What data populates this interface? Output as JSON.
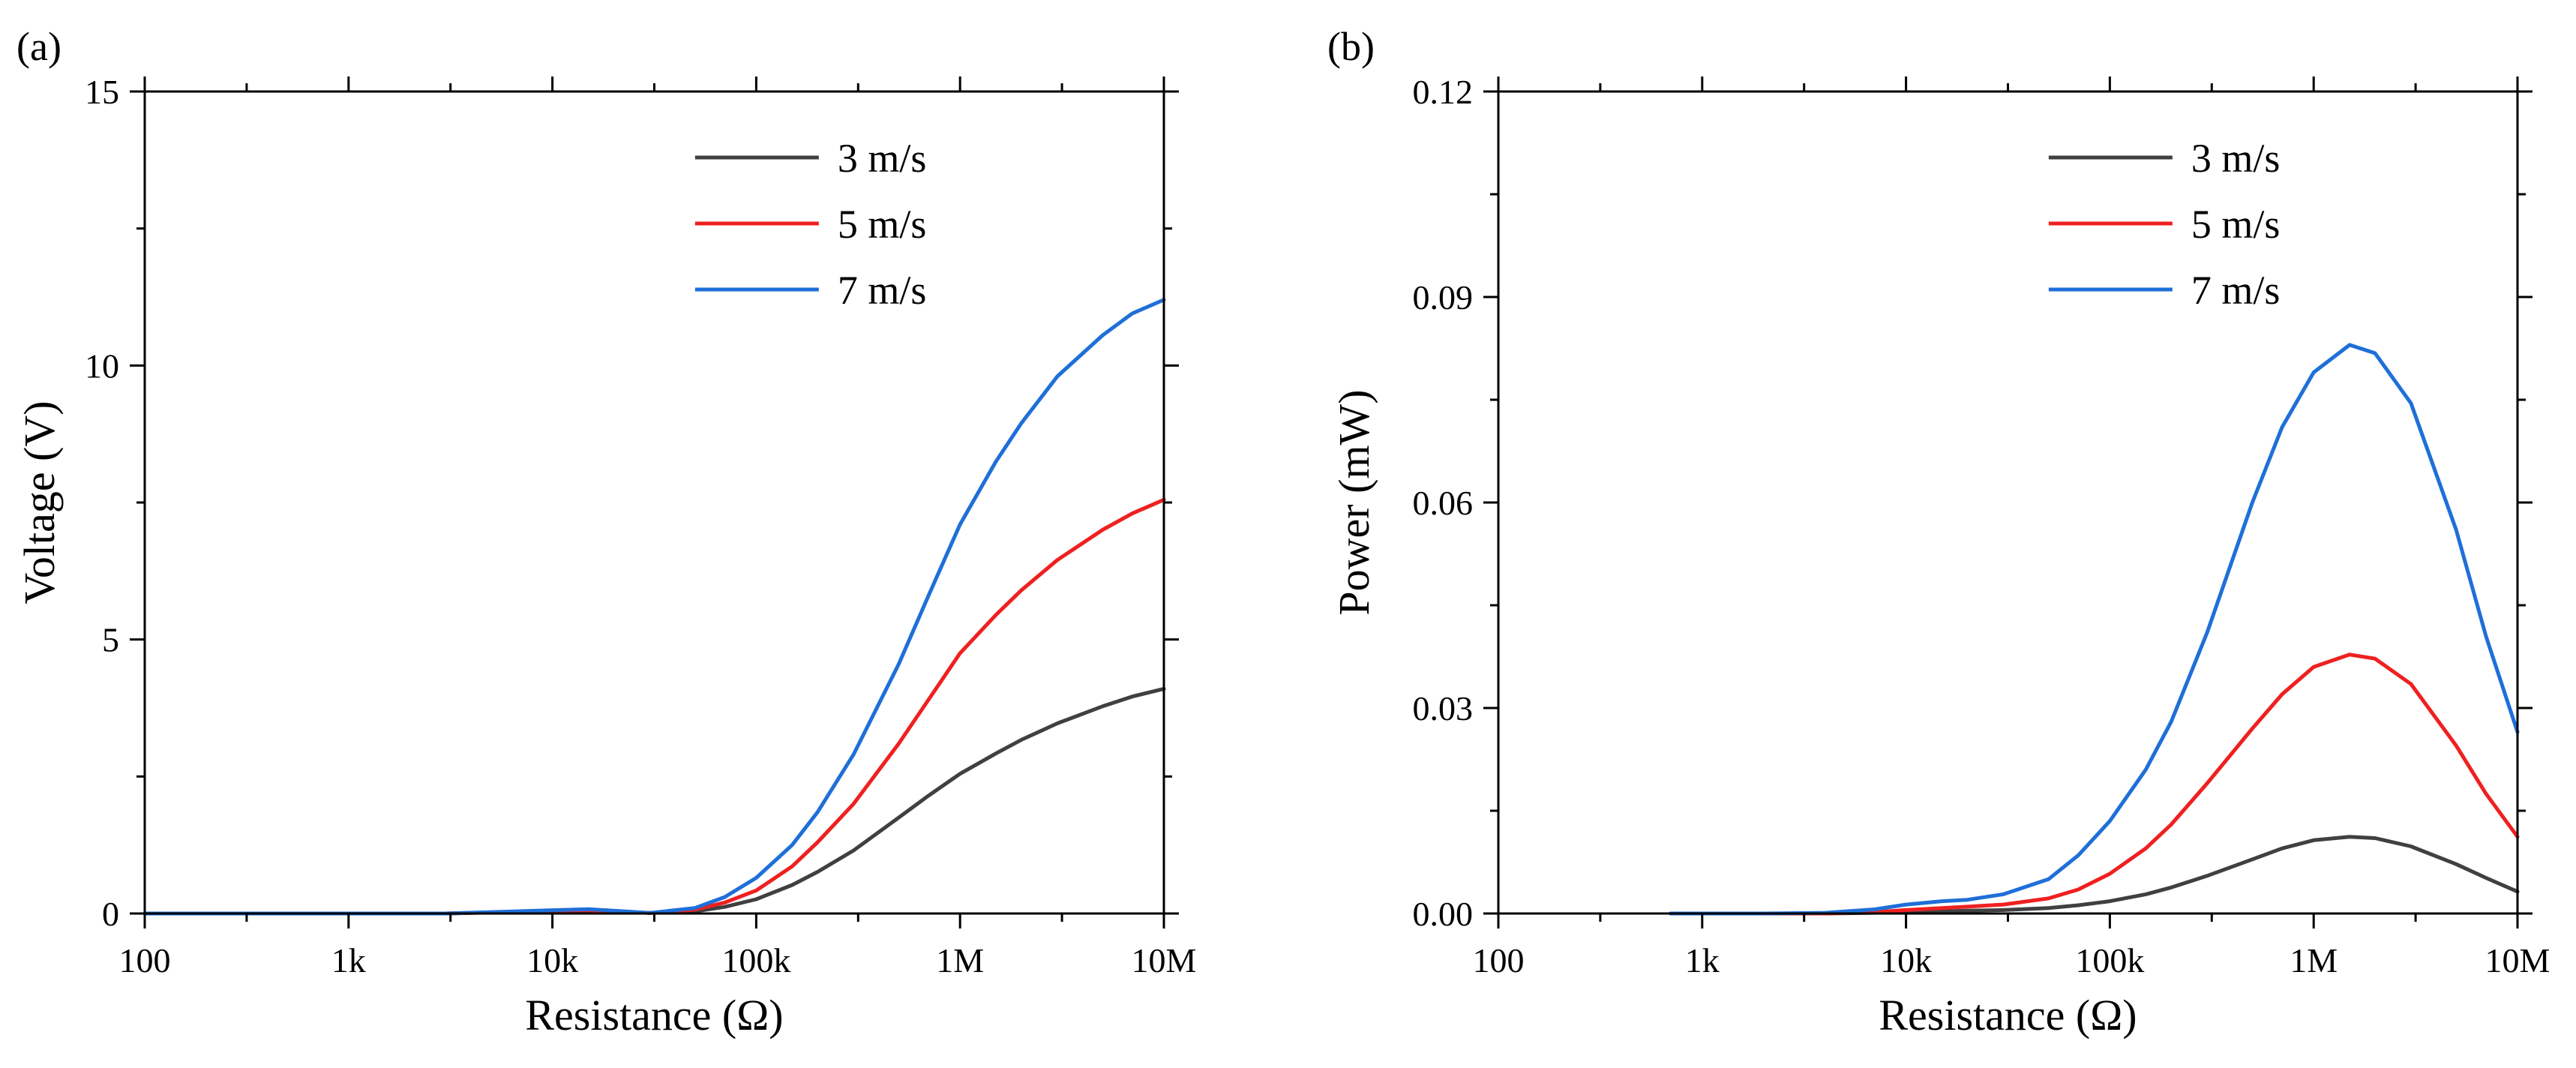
{
  "chart_data": [
    {
      "panel_label": "(a)",
      "type": "line",
      "x_scale": "log",
      "xlabel": "Resistance (Ω)",
      "ylabel": "Voltage (V)",
      "xlim": [
        100,
        10000000
      ],
      "ylim": [
        0,
        15
      ],
      "x_ticks": [
        100,
        1000,
        10000,
        100000,
        1000000,
        10000000
      ],
      "x_tick_labels": [
        "100",
        "1k",
        "10k",
        "100k",
        "1M",
        "10M"
      ],
      "y_ticks": [
        0,
        5,
        10,
        15
      ],
      "y_tick_labels": [
        "0",
        "5",
        "10",
        "15"
      ],
      "legend_position": "top-right",
      "x": [
        100,
        1000,
        3000,
        10000,
        15000,
        20000,
        30000,
        50000,
        70000,
        100000,
        150000,
        200000,
        300000,
        500000,
        700000,
        1000000,
        1500000,
        2000000,
        3000000,
        5000000,
        7000000,
        10000000
      ],
      "series": [
        {
          "name": "3 m/s",
          "color": "#404040",
          "values": [
            0,
            0,
            0,
            0.04,
            0.05,
            0.03,
            0.01,
            0.04,
            0.12,
            0.26,
            0.52,
            0.76,
            1.15,
            1.75,
            2.15,
            2.55,
            2.92,
            3.17,
            3.47,
            3.78,
            3.96,
            4.1
          ]
        },
        {
          "name": "5 m/s",
          "color": "#ef2020",
          "values": [
            0,
            0,
            0,
            0.05,
            0.06,
            0.04,
            0.01,
            0.07,
            0.2,
            0.42,
            0.86,
            1.3,
            2.0,
            3.1,
            3.9,
            4.75,
            5.45,
            5.9,
            6.45,
            7.0,
            7.3,
            7.55
          ]
        },
        {
          "name": "7 m/s",
          "color": "#1f6fd8",
          "values": [
            0,
            0,
            0,
            0.06,
            0.08,
            0.05,
            0.01,
            0.1,
            0.3,
            0.65,
            1.25,
            1.85,
            2.9,
            4.55,
            5.8,
            7.1,
            8.25,
            8.95,
            9.8,
            10.55,
            10.95,
            11.2
          ]
        }
      ]
    },
    {
      "panel_label": "(b)",
      "type": "line",
      "x_scale": "log",
      "xlabel": "Resistance (Ω)",
      "ylabel": "Power (mW)",
      "xlim": [
        100,
        10000000
      ],
      "ylim": [
        0,
        0.12
      ],
      "x_ticks": [
        100,
        1000,
        10000,
        100000,
        1000000,
        10000000
      ],
      "x_tick_labels": [
        "100",
        "1k",
        "10k",
        "100k",
        "1M",
        "10M"
      ],
      "y_ticks": [
        0,
        0.03,
        0.06,
        0.09,
        0.12
      ],
      "y_tick_labels": [
        "0.00",
        "0.03",
        "0.06",
        "0.09",
        "0.12"
      ],
      "legend_position": "top-right",
      "x": [
        700,
        1000,
        2000,
        4000,
        7000,
        10000,
        15000,
        20000,
        30000,
        50000,
        70000,
        100000,
        150000,
        200000,
        300000,
        500000,
        700000,
        1000000,
        1500000,
        2000000,
        3000000,
        5000000,
        7000000,
        10000000
      ],
      "series": [
        {
          "name": "3 m/s",
          "color": "#404040",
          "values": [
            0,
            0,
            0,
            0,
            0.0001,
            0.0002,
            0.0003,
            0.0004,
            0.0005,
            0.0008,
            0.0012,
            0.0018,
            0.0028,
            0.0038,
            0.0055,
            0.0079,
            0.0095,
            0.0107,
            0.0112,
            0.011,
            0.0098,
            0.0072,
            0.0052,
            0.0032
          ]
        },
        {
          "name": "5 m/s",
          "color": "#ef2020",
          "values": [
            0,
            0,
            0,
            0,
            0.0002,
            0.0005,
            0.0008,
            0.001,
            0.0013,
            0.0022,
            0.0035,
            0.0058,
            0.0095,
            0.013,
            0.019,
            0.027,
            0.032,
            0.036,
            0.0378,
            0.0372,
            0.0335,
            0.0245,
            0.0175,
            0.0112
          ]
        },
        {
          "name": "7 m/s",
          "color": "#1f6fd8",
          "values": [
            0,
            0,
            0,
            0.0001,
            0.0006,
            0.0013,
            0.0018,
            0.002,
            0.0028,
            0.005,
            0.0085,
            0.0135,
            0.021,
            0.028,
            0.041,
            0.06,
            0.071,
            0.079,
            0.083,
            0.0818,
            0.0745,
            0.056,
            0.0405,
            0.0265
          ]
        }
      ]
    }
  ]
}
